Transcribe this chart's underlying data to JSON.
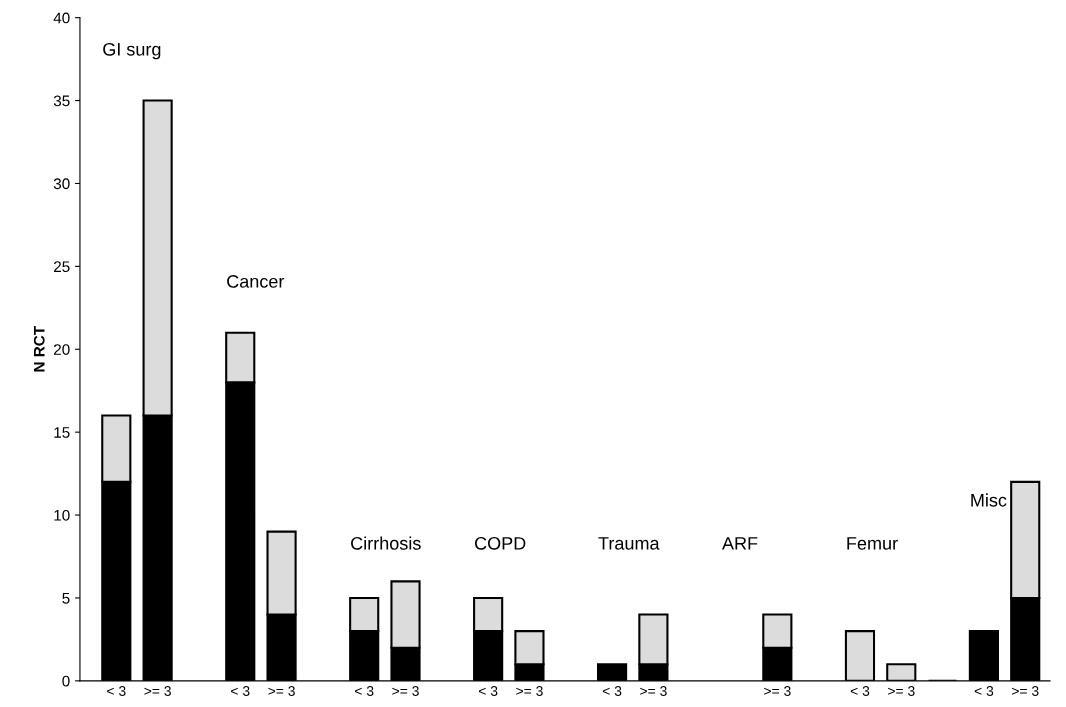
{
  "chart_data": {
    "type": "bar",
    "stacked": true,
    "ylabel": "N RCT",
    "categories": [
      "< 3",
      ">= 3",
      null,
      "< 3",
      ">= 3",
      null,
      "< 3",
      ">= 3",
      null,
      "< 3",
      ">= 3",
      null,
      "< 3",
      ">= 3",
      null,
      null,
      ">= 3",
      null,
      "< 3",
      ">= 3",
      null,
      "< 3",
      ">= 3"
    ],
    "series": [
      {
        "color": "#000000",
        "values": [
          12,
          16,
          null,
          18,
          4,
          null,
          3,
          2,
          null,
          3,
          1,
          null,
          1,
          1,
          null,
          null,
          2,
          null,
          null,
          null,
          0,
          3,
          5
        ]
      },
      {
        "color": "#dcdcdc",
        "values": [
          4,
          19,
          null,
          3,
          5,
          null,
          2,
          4,
          null,
          2,
          2,
          null,
          null,
          3,
          null,
          null,
          2,
          null,
          3,
          1,
          null,
          null,
          7
        ]
      }
    ],
    "annotations": [
      "GI surg",
      "Cancer",
      "Cirrhosis",
      "COPD",
      "Trauma",
      "ARF",
      "Femur",
      "Misc"
    ],
    "ylim": [
      0,
      40
    ],
    "yticks": [
      0,
      5,
      10,
      15,
      20,
      25,
      30,
      35,
      40
    ],
    "grid": false,
    "legend": false
  }
}
